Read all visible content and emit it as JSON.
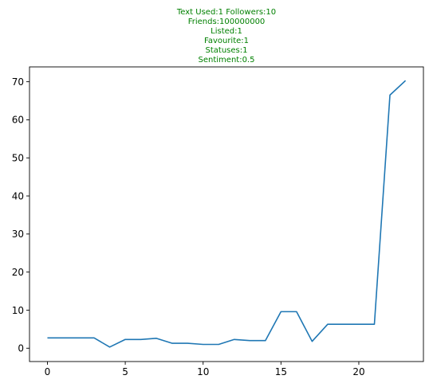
{
  "chart_data": {
    "type": "line",
    "title_lines": [
      "Text Used:1 Followers:10",
      "Friends:100000000",
      "Listed:1",
      "Favourite:1",
      "Statuses:1",
      "Sentiment:0.5"
    ],
    "title_color": "#008000",
    "xlabel": "",
    "ylabel": "",
    "xlim": [
      -1.15,
      24.15
    ],
    "ylim": [
      -3.5,
      73.9
    ],
    "x_ticks": [
      0,
      5,
      10,
      15,
      20
    ],
    "y_ticks": [
      0,
      10,
      20,
      30,
      40,
      50,
      60,
      70
    ],
    "grid": false,
    "series": [
      {
        "color": "#1f77b4",
        "x": [
          0,
          1,
          2,
          3,
          4,
          5,
          6,
          7,
          8,
          9,
          10,
          11,
          12,
          13,
          14,
          15,
          16,
          17,
          18,
          19,
          20,
          21,
          22,
          23
        ],
        "values": [
          2.7,
          2.7,
          2.7,
          2.7,
          0.3,
          2.3,
          2.3,
          2.6,
          1.3,
          1.3,
          1.0,
          1.0,
          2.3,
          2.0,
          2.0,
          9.6,
          9.6,
          1.8,
          6.3,
          6.3,
          6.3,
          6.3,
          66.5,
          70.3
        ]
      }
    ]
  }
}
